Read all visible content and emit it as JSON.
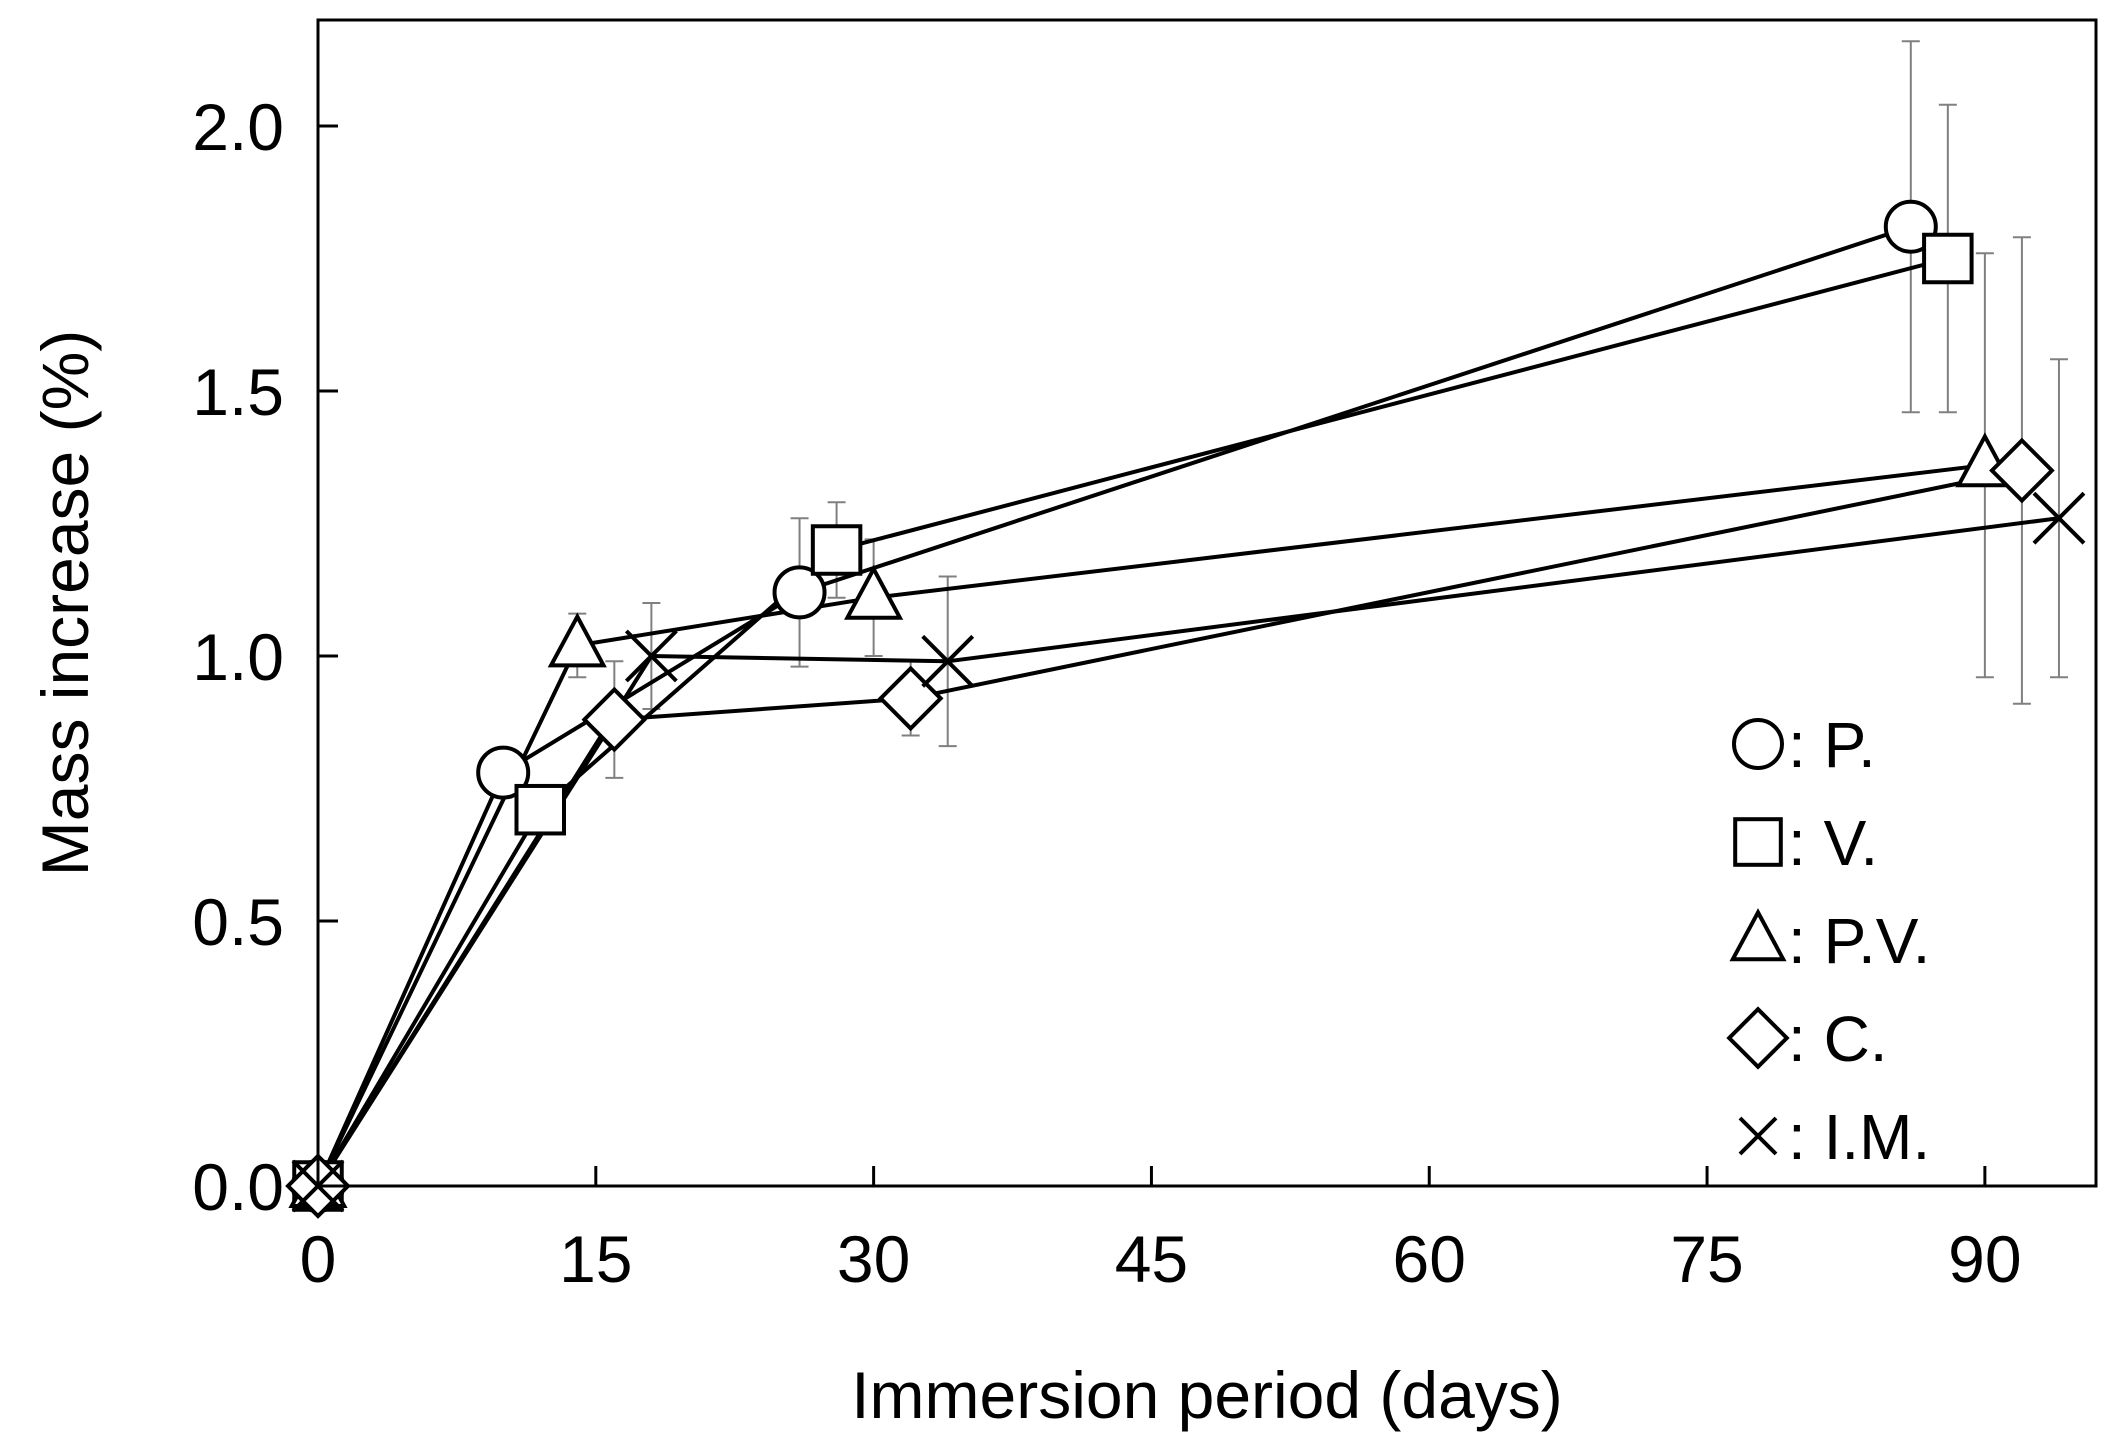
{
  "chart_data": {
    "type": "line",
    "title": "",
    "xlabel": "Immersion period (days)",
    "ylabel": "Mass increase (%)",
    "xlim": [
      0,
      96
    ],
    "ylim": [
      0,
      2.2
    ],
    "x_ticks": [
      "0",
      "15",
      "30",
      "45",
      "60",
      "75",
      "90"
    ],
    "y_ticks": [
      "0.0",
      "0.5",
      "1.0",
      "1.5",
      "2.0"
    ],
    "grid": false,
    "legend_position": "bottom-right",
    "series": [
      {
        "name": "P.",
        "marker": "circle-icon",
        "points": [
          {
            "x": 0,
            "y": 0.0,
            "err": 0
          },
          {
            "x": 10,
            "y": 0.78,
            "err": 0
          },
          {
            "x": 26,
            "y": 1.12,
            "err": 0.14
          },
          {
            "x": 86,
            "y": 1.81,
            "err": 0.35
          }
        ]
      },
      {
        "name": "V.",
        "marker": "square-icon",
        "points": [
          {
            "x": 0,
            "y": 0.0,
            "err": 0
          },
          {
            "x": 12,
            "y": 0.71,
            "err": 0
          },
          {
            "x": 28,
            "y": 1.2,
            "err": 0.09
          },
          {
            "x": 88,
            "y": 1.75,
            "err": 0.29
          }
        ]
      },
      {
        "name": "P.V.",
        "marker": "triangle-icon",
        "points": [
          {
            "x": 0,
            "y": 0.0,
            "err": 0
          },
          {
            "x": 14,
            "y": 1.02,
            "err": 0.06
          },
          {
            "x": 30,
            "y": 1.11,
            "err": 0.11
          },
          {
            "x": 90,
            "y": 1.36,
            "err": 0.4
          }
        ]
      },
      {
        "name": "C.",
        "marker": "diamond-icon",
        "points": [
          {
            "x": 0,
            "y": 0.0,
            "err": 0
          },
          {
            "x": 16,
            "y": 0.88,
            "err": 0.11
          },
          {
            "x": 32,
            "y": 0.92,
            "err": 0.07
          },
          {
            "x": 92,
            "y": 1.35,
            "err": 0.44
          }
        ]
      },
      {
        "name": "I.M.",
        "marker": "cross-icon",
        "points": [
          {
            "x": 0,
            "y": 0.0,
            "err": 0
          },
          {
            "x": 18,
            "y": 1.0,
            "err": 0.1
          },
          {
            "x": 34,
            "y": 0.99,
            "err": 0.16
          },
          {
            "x": 94,
            "y": 1.26,
            "err": 0.3
          }
        ]
      }
    ],
    "legend": [
      {
        "marker": "circle-icon",
        "label": ": P."
      },
      {
        "marker": "square-icon",
        "label": ": V."
      },
      {
        "marker": "triangle-icon",
        "label": ": P.V."
      },
      {
        "marker": "diamond-icon",
        "label": ": C."
      },
      {
        "marker": "cross-icon",
        "label": ": I.M."
      }
    ],
    "colors": {
      "line": "#000000",
      "error_bar": "#808080",
      "marker_fill": "#ffffff",
      "background": "#ffffff"
    }
  }
}
